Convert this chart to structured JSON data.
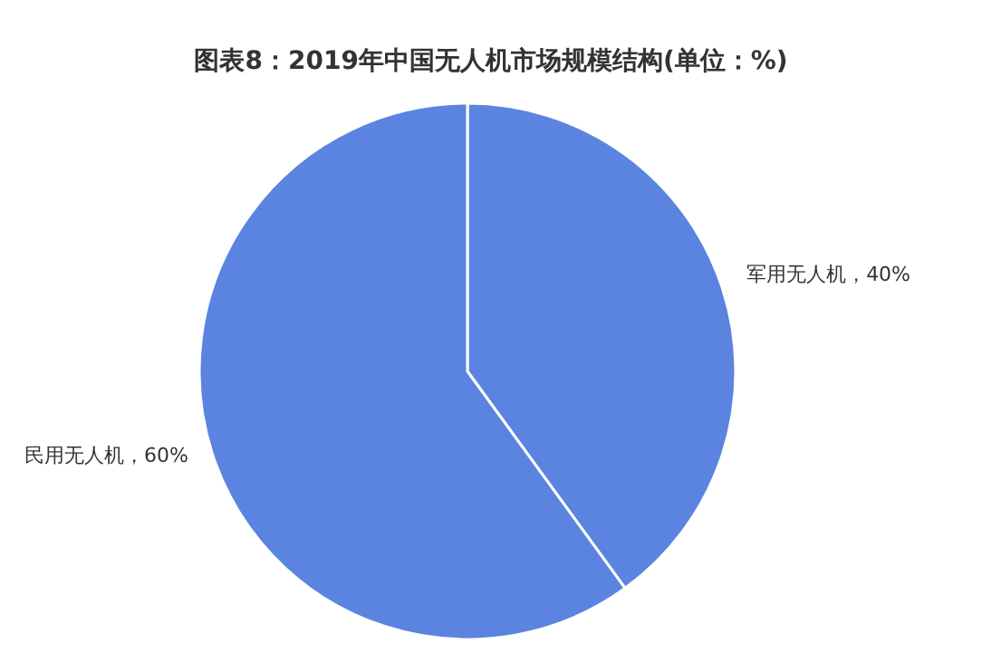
{
  "chart_data": {
    "type": "pie",
    "title": "图表8：2019年中国无人机市场规模结构(单位：%)",
    "categories": [
      "军用无人机",
      "民用无人机"
    ],
    "values": [
      40,
      60
    ],
    "value_labels": [
      "40%",
      "60%"
    ],
    "colors": [
      "#5b84e0",
      "#5b84e0"
    ],
    "legend": false
  }
}
